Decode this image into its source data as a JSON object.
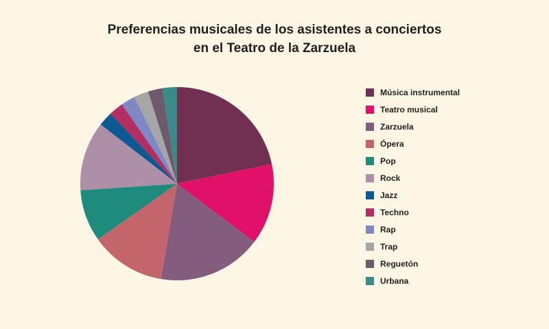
{
  "chart_data": {
    "type": "pie",
    "title_lines": [
      "Preferencias musicales de los asistentes a conciertos",
      "en el Teatro de la Zarzuela"
    ],
    "legend_position": "right",
    "slices": [
      {
        "label": "Música instrumental",
        "value": 22.5,
        "color": "#712f52"
      },
      {
        "label": "Teatro musical",
        "value": 14,
        "color": "#e1116a"
      },
      {
        "label": "Zarzuela",
        "value": 18,
        "color": "#835c7e"
      },
      {
        "label": "Ópera",
        "value": 13,
        "color": "#c4656b"
      },
      {
        "label": "Pop",
        "value": 9,
        "color": "#1e8b7c"
      },
      {
        "label": "Rock",
        "value": 12,
        "color": "#ad8fa8"
      },
      {
        "label": "Jazz",
        "value": 2.5,
        "color": "#0d5a92"
      },
      {
        "label": "Techno",
        "value": 2.5,
        "color": "#b32f62"
      },
      {
        "label": "Rap",
        "value": 2.5,
        "color": "#7d88c4"
      },
      {
        "label": "Trap",
        "value": 2.5,
        "color": "#a6a6a6"
      },
      {
        "label": "Reguetón",
        "value": 2.5,
        "color": "#6d5a6a"
      },
      {
        "label": "Urbana",
        "value": 2.5,
        "color": "#388b87"
      }
    ]
  }
}
